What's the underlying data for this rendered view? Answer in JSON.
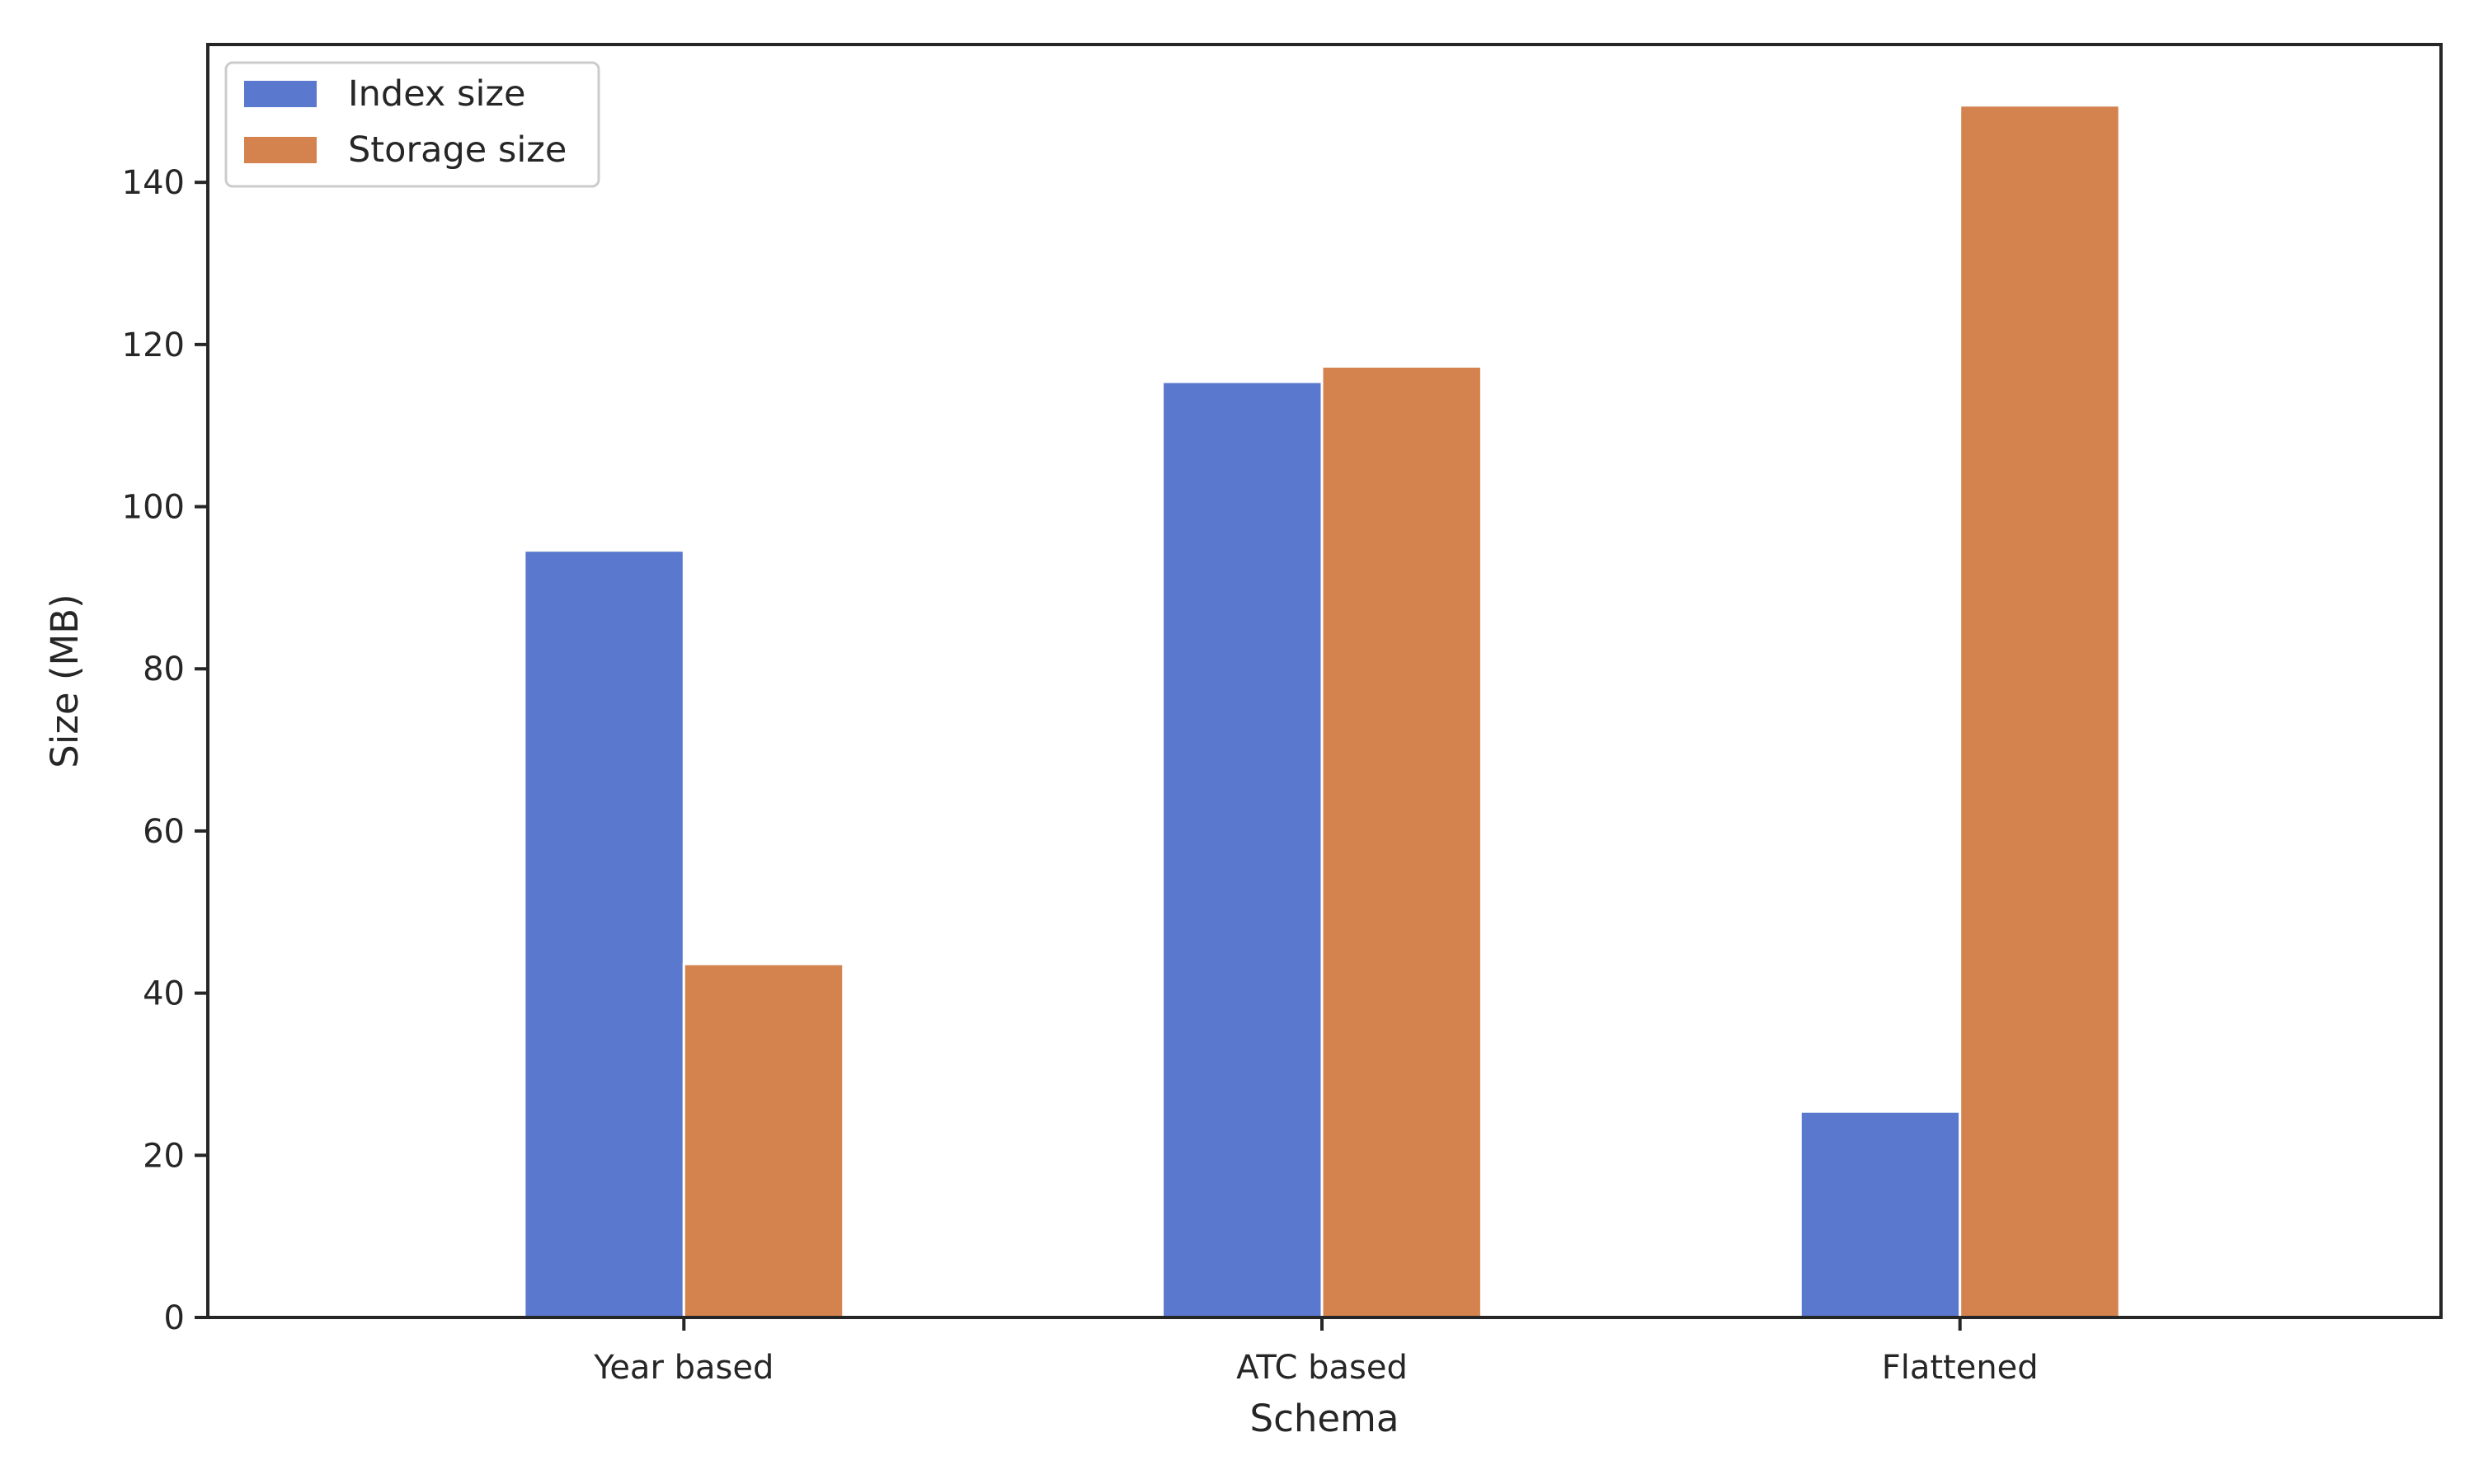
{
  "chart_data": {
    "type": "bar",
    "title": "",
    "xlabel": "Schema",
    "ylabel": "Size (MB)",
    "categories": [
      "Year based",
      "ATC based",
      "Flattened"
    ],
    "series": [
      {
        "name": "Index size",
        "color": "#5a78cd",
        "values": [
          94.6,
          115.4,
          25.4
        ]
      },
      {
        "name": "Storage size",
        "color": "#d4834f",
        "values": [
          43.6,
          117.3,
          149.5
        ]
      }
    ],
    "ylim": [
      0,
      157
    ],
    "yticks": [
      0,
      20,
      40,
      60,
      80,
      100,
      120,
      140
    ],
    "grid": false,
    "legend": "top-left"
  }
}
